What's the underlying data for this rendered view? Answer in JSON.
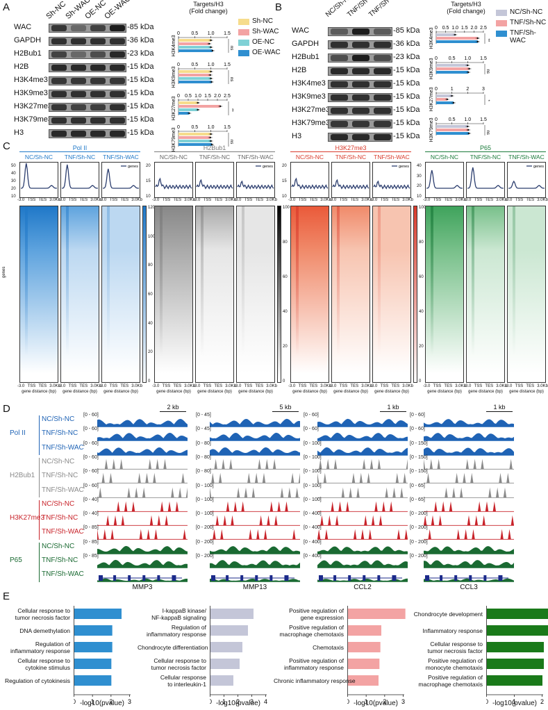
{
  "panels": {
    "A": "A",
    "B": "B",
    "C": "C",
    "D": "D",
    "E": "E"
  },
  "panelA": {
    "lanes": [
      "Sh-NC",
      "Sh-WAC",
      "OE-NC",
      "OE-WAC"
    ],
    "rows": [
      {
        "name": "WAC",
        "kda": "-85 kDa"
      },
      {
        "name": "GAPDH",
        "kda": "-36 kDa"
      },
      {
        "name": "H2Bub1",
        "kda": "-23 kDa"
      },
      {
        "name": "H2B",
        "kda": "-15 kDa"
      },
      {
        "name": "H3K4me3",
        "kda": "-15 kDa"
      },
      {
        "name": "H3K9me3",
        "kda": "-15 kDa"
      },
      {
        "name": "H3K27me3",
        "kda": "-15 kDa"
      },
      {
        "name": "H3K79me3",
        "kda": "-15 kDa"
      },
      {
        "name": "H3",
        "kda": "-15 kDa"
      }
    ],
    "bar_title": "Targets/H3",
    "bar_subtitle": "(Fold change)",
    "axis_ticks_a": [
      "0",
      "0.5",
      "1.0",
      "1.5"
    ],
    "axis_ticks_b": [
      "0",
      "0.5",
      "1.0",
      "1.5"
    ],
    "axis_ticks_c": [
      "0",
      "0.5",
      "1.0",
      "1.5",
      "2.0",
      "2.5"
    ],
    "axis_ticks_d": [
      "0",
      "0.5",
      "1.0",
      "1.5"
    ],
    "bar_groups": [
      "H3K4me3",
      "H3K9me3",
      "H3K27me3",
      "H3K79me3"
    ],
    "sig": [
      "ns",
      "ns",
      "**",
      "ns"
    ],
    "legend": [
      {
        "label": "Sh-NC",
        "color": "#f6dc8c"
      },
      {
        "label": "Sh-WAC",
        "color": "#f3a3a3"
      },
      {
        "label": "OE-NC",
        "color": "#7fd1d6"
      },
      {
        "label": "OE-WAC",
        "color": "#2f8fd0"
      }
    ]
  },
  "panelB": {
    "lanes": [
      "NC/Sh-NC",
      "TNF/Sh-NC",
      "TNF/Sh-WAC"
    ],
    "rows": [
      {
        "name": "WAC",
        "kda": "-85 kDa"
      },
      {
        "name": "GAPDH",
        "kda": "-36 kDa"
      },
      {
        "name": "H2Bub1",
        "kda": "-23 kDa"
      },
      {
        "name": "H2B",
        "kda": "-15 kDa"
      },
      {
        "name": "H3K4me3",
        "kda": "-15 kDa"
      },
      {
        "name": "H3K9me3",
        "kda": "-15 kDa"
      },
      {
        "name": "H3K27me3",
        "kda": "-15 kDa"
      },
      {
        "name": "H3K79me3",
        "kda": "-15 kDa"
      },
      {
        "name": "H3",
        "kda": "-15 kDa"
      }
    ],
    "bar_title": "Targets/H3",
    "bar_subtitle": "(Fold change)",
    "axis_ticks_a": [
      "0",
      "0.5",
      "1.0",
      "1.5",
      "2.0",
      "2.5"
    ],
    "axis_ticks_b": [
      "0",
      "0.5",
      "1.0",
      "1.5"
    ],
    "axis_ticks_c": [
      "0",
      "1",
      "2",
      "3"
    ],
    "axis_ticks_d": [
      "0",
      "0.5",
      "1.0",
      "1.5"
    ],
    "bar_groups": [
      "H3K4me3",
      "H3K9me3",
      "H3K27me3",
      "H3K79me3"
    ],
    "sig": [
      "**",
      "ns",
      "*",
      "ns"
    ],
    "legend": [
      {
        "label": "NC/Sh-NC",
        "color": "#c4c6d8"
      },
      {
        "label": "TNF/Sh-NC",
        "color": "#f3a3a3"
      },
      {
        "label": "TNF/Sh-WAC",
        "color": "#2f8fd0"
      }
    ]
  },
  "panelC": {
    "groups": [
      {
        "title": "Pol II",
        "color": "#1f78c8",
        "cbmax": "120",
        "cbticks": [
          "120",
          "100",
          "80",
          "60",
          "40",
          "20",
          "0"
        ]
      },
      {
        "title": "H2Bub1",
        "color": "#7a7a7a",
        "cbmax": "100",
        "cbticks": [
          "100",
          "80",
          "60",
          "40",
          "20",
          "0"
        ]
      },
      {
        "title": "H3K27me3",
        "color": "#d93a2b",
        "cbmax": "100",
        "cbticks": [
          "100",
          "80",
          "60",
          "40",
          "20",
          "0"
        ]
      },
      {
        "title": "P65",
        "color": "#1a7a3a",
        "cbmax": "100",
        "cbticks": [
          "100",
          "80",
          "60",
          "40",
          "20",
          "0"
        ]
      }
    ],
    "conditions": [
      "NC/Sh-NC",
      "TNF/Sh-NC",
      "TNF/Sh-WAC"
    ],
    "legend_label": "genes",
    "yticks_pol": [
      "50",
      "40",
      "30",
      "20",
      "10"
    ],
    "yticks_h2b": [
      "20",
      "15",
      "10"
    ],
    "yticks_k27": [
      "20",
      "15",
      "10"
    ],
    "yticks_p65": [
      "40",
      "30",
      "20",
      "10"
    ],
    "xticks": [
      "-3.0",
      "TSS",
      "TES",
      "3.0Kb"
    ],
    "xlabel": "gene distance (bp)",
    "ylabel_genes": "genes"
  },
  "panelD": {
    "genes": [
      "MMP3",
      "MMP13",
      "CCL2",
      "CCL3"
    ],
    "scalebars": [
      "2 kb",
      "5 kb",
      "1 kb",
      "1 kb"
    ],
    "groups": [
      {
        "name": "Pol II",
        "color": "#1f63b5",
        "tracks": [
          "NC/Sh-NC",
          "TNF/Sh-NC",
          "TNF/Sh-WAC"
        ]
      },
      {
        "name": "H2Bub1",
        "color": "#8a8a8a",
        "tracks": [
          "NC/Sh-NC",
          "TNF/Sh-NC",
          "TNF/Sh-WAC"
        ]
      },
      {
        "name": "H3K27me3",
        "color": "#c8232a",
        "tracks": [
          "NC/Sh-NC",
          "TNF/Sh-NC",
          "TNF/Sh-WAC"
        ]
      },
      {
        "name": "P65",
        "color": "#1a6a32",
        "tracks": [
          "NC/Sh-NC",
          "TNF/Sh-NC",
          "TNF/Sh-WAC"
        ]
      }
    ],
    "ranges": [
      [
        "[0 - 60]",
        "[0 - 60]",
        "[0 - 60]",
        "[0 - 60]",
        "[0 - 60]",
        "[0 - 60]",
        "[0 - 40]",
        "[0 - 40]",
        "[0 - 85]",
        "[0 - 85]",
        "[0 - 85]"
      ],
      [
        "[0 - 45]",
        "[0 - 45]",
        "[0 - 80]",
        "[0 - 80]",
        "[0 - 80]",
        "[0 - 100]",
        "[0 - 100]",
        "[0 - 100]",
        "[0 - 200]",
        "[0 - 200]",
        "[0 - 200]"
      ],
      [
        "[0 - 60]",
        "[0 - 60]",
        "[0 - 100]",
        "[0 - 100]",
        "[0 - 100]",
        "[0 - 100]",
        "[0 - 100]",
        "[0 - 400]",
        "[0 - 400]",
        "[0 - 400]",
        "[0 - 400]"
      ],
      [
        "[0 - 60]",
        "[0 - 60]",
        "[0 - 150]",
        "[0 - 150]",
        "[0 - 150]",
        "[0 - 65]",
        "[0 - 65]",
        "[0 - 200]",
        "[0 - 200]",
        "[0 - 200]",
        "[0 - 200]"
      ]
    ]
  },
  "panelE": {
    "xlabel": "-log10(pvalue)",
    "charts": [
      {
        "color": "#2f8fd0",
        "ticks": [
          "0",
          "1",
          "2",
          "3"
        ],
        "terms": [
          "Cellular response to\ntumor necrosis factor",
          "DNA demethylation",
          "Regulation of\ninflammatory response",
          "Cellular response to\ncytokine stimulus",
          "Regulation of cytokinesis"
        ],
        "values": [
          2.55,
          2.05,
          2.05,
          2.0,
          2.0
        ]
      },
      {
        "color": "#c4c6d8",
        "ticks": [
          "0",
          "1",
          "2",
          "3",
          "4"
        ],
        "terms": [
          "I-kappaB kinase/\nNF-kappaB signaling",
          "Regulation of\ninflammatory response",
          "Chondrocyte differentiation",
          "Cellular response to\ntumor necrosis factor",
          "Cellular response\nto interleukin-1"
        ],
        "values": [
          3.1,
          2.7,
          2.3,
          2.1,
          1.65
        ]
      },
      {
        "color": "#f3a3a3",
        "ticks": [
          "0",
          "1",
          "2",
          "3"
        ],
        "terms": [
          "Positive regulation of\ngene expression",
          "Positive regulation of\nmacrophage chemotaxis",
          "Chemotaxis",
          "Positive regulation of\ninflammatory response",
          "Chronic inflammatory response"
        ],
        "values": [
          3.1,
          1.8,
          1.75,
          1.7,
          1.65
        ]
      },
      {
        "color": "#1a7a1a",
        "ticks": [
          "0",
          "1",
          "2"
        ],
        "terms": [
          "Chondrocyte development",
          "Inflammatory response",
          "Cellular response to\ntumor necrosis factor",
          "Positive regulation of\nmonocyte chemotaxis",
          "Positive regulation of\nmacrophage chemotaxis"
        ],
        "values": [
          2.35,
          2.3,
          2.05,
          2.05,
          2.0
        ]
      }
    ]
  }
}
